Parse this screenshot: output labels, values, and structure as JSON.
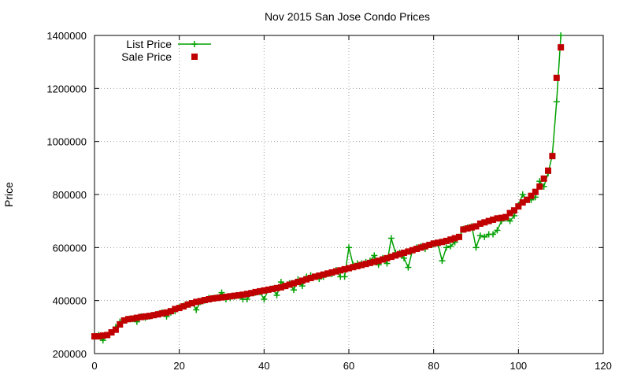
{
  "chart_data": {
    "type": "line",
    "title": "Nov 2015 San Jose Condo Prices",
    "xlabel": "",
    "ylabel": "Price",
    "xlim": [
      0,
      120
    ],
    "ylim": [
      200000,
      1400000
    ],
    "x_ticks": [
      0,
      20,
      40,
      60,
      80,
      100,
      120
    ],
    "y_ticks": [
      200000,
      400000,
      600000,
      800000,
      1000000,
      1200000,
      1400000
    ],
    "x_tick_labels": [
      "0",
      "20",
      "40",
      "60",
      "80",
      "100",
      "120"
    ],
    "y_tick_labels": [
      "200000",
      "400000",
      "600000",
      "800000",
      "1000000",
      "1200000",
      "1400000"
    ],
    "grid": true,
    "legend_position": "top-left",
    "x": [
      0,
      1,
      2,
      3,
      4,
      5,
      6,
      7,
      8,
      9,
      10,
      11,
      12,
      13,
      14,
      15,
      16,
      17,
      18,
      19,
      20,
      21,
      22,
      23,
      24,
      25,
      26,
      27,
      28,
      29,
      30,
      31,
      32,
      33,
      34,
      35,
      36,
      37,
      38,
      39,
      40,
      41,
      42,
      43,
      44,
      45,
      46,
      47,
      48,
      49,
      50,
      51,
      52,
      53,
      54,
      55,
      56,
      57,
      58,
      59,
      60,
      61,
      62,
      63,
      64,
      65,
      66,
      67,
      68,
      69,
      70,
      71,
      72,
      73,
      74,
      75,
      76,
      77,
      78,
      79,
      80,
      81,
      82,
      83,
      84,
      85,
      86,
      87,
      88,
      89,
      90,
      91,
      92,
      93,
      94,
      95,
      96,
      97,
      98,
      99,
      100,
      101,
      102,
      103,
      104,
      105,
      106,
      107,
      108,
      109,
      110
    ],
    "series": [
      {
        "name": "List Price",
        "color": "#00a000",
        "marker": "plus",
        "values": [
          265000,
          270000,
          250000,
          270000,
          280000,
          300000,
          320000,
          325000,
          330000,
          330000,
          320000,
          340000,
          335000,
          340000,
          345000,
          350000,
          355000,
          340000,
          355000,
          360000,
          375000,
          380000,
          385000,
          390000,
          365000,
          395000,
          400000,
          410000,
          410000,
          412000,
          430000,
          405000,
          410000,
          415000,
          418000,
          405000,
          405000,
          428000,
          430000,
          432000,
          405000,
          440000,
          445000,
          420000,
          470000,
          455000,
          465000,
          440000,
          480000,
          455000,
          490000,
          495000,
          490000,
          482000,
          490000,
          500000,
          500000,
          515000,
          490000,
          490000,
          600000,
          535000,
          540000,
          540000,
          545000,
          550000,
          570000,
          535000,
          560000,
          540000,
          635000,
          580000,
          580000,
          560000,
          525000,
          590000,
          600000,
          605000,
          595000,
          610000,
          612000,
          615000,
          550000,
          600000,
          605000,
          620000,
          640000,
          670000,
          675000,
          680000,
          600000,
          645000,
          640000,
          650000,
          650000,
          665000,
          700000,
          710000,
          700000,
          720000,
          760000,
          800000,
          780000,
          780000,
          790000,
          850000,
          830000,
          880000,
          950000,
          1150000,
          1400000
        ]
      },
      {
        "name": "Sale Price",
        "color": "#c00000",
        "marker": "square",
        "values": [
          265000,
          265000,
          268000,
          270000,
          280000,
          290000,
          310000,
          325000,
          330000,
          332000,
          335000,
          338000,
          340000,
          342000,
          345000,
          348000,
          352000,
          355000,
          360000,
          368000,
          372000,
          378000,
          385000,
          390000,
          395000,
          398000,
          402000,
          405000,
          408000,
          410000,
          412000,
          414000,
          416000,
          418000,
          420000,
          422000,
          425000,
          428000,
          432000,
          435000,
          438000,
          441000,
          444000,
          447000,
          450000,
          455000,
          460000,
          465000,
          470000,
          475000,
          480000,
          485000,
          490000,
          494000,
          498000,
          502000,
          506000,
          510000,
          514000,
          518000,
          522000,
          526000,
          530000,
          534000,
          538000,
          542000,
          546000,
          550000,
          555000,
          560000,
          565000,
          570000,
          575000,
          580000,
          585000,
          590000,
          595000,
          600000,
          605000,
          610000,
          615000,
          618000,
          621000,
          625000,
          630000,
          635000,
          640000,
          668000,
          672000,
          676000,
          680000,
          690000,
          695000,
          700000,
          705000,
          710000,
          712000,
          715000,
          730000,
          740000,
          755000,
          770000,
          780000,
          795000,
          810000,
          830000,
          860000,
          890000,
          945000,
          1240000,
          1355000
        ]
      }
    ]
  }
}
